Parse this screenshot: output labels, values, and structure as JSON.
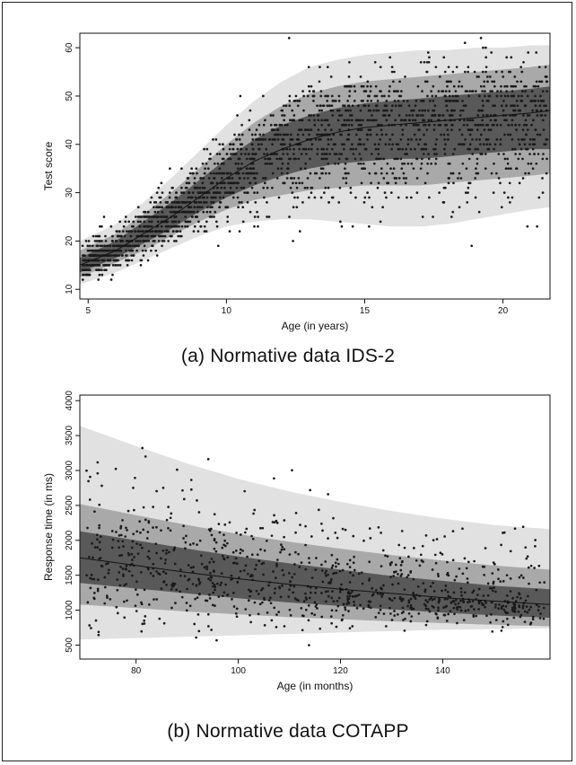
{
  "chart_data": [
    {
      "type": "scatter",
      "caption": "(a)  Normative data IDS-2",
      "xlabel": "Age (in years)",
      "ylabel": "Test score",
      "xlim": [
        4.7,
        21.7
      ],
      "ylim": [
        8,
        63
      ],
      "xticks": [
        5,
        10,
        15,
        20
      ],
      "yticks": [
        10,
        20,
        30,
        40,
        50,
        60
      ],
      "grid": false,
      "centile_bands": {
        "x": [
          4.7,
          6,
          7,
          8,
          9,
          10,
          11,
          12,
          13,
          14,
          15,
          16,
          17,
          18,
          19,
          20,
          21,
          21.7
        ],
        "median": [
          15,
          18,
          21.5,
          25,
          29,
          33,
          36.5,
          39,
          41,
          42.5,
          43.5,
          44,
          44.5,
          45,
          45.5,
          46,
          46.5,
          47
        ],
        "inner": {
          "lower": [
            13.5,
            16.5,
            19.5,
            22.5,
            26,
            29,
            31.5,
            33.5,
            35,
            36,
            36.5,
            37,
            37,
            37.5,
            38,
            38.5,
            39,
            39
          ],
          "upper": [
            16.5,
            20,
            24,
            28,
            32.5,
            37,
            41,
            44,
            46,
            47.5,
            48.5,
            49,
            49.5,
            50,
            50.5,
            51,
            51.5,
            52
          ]
        },
        "middle": {
          "lower": [
            12.5,
            15.5,
            18,
            21,
            24,
            26.5,
            28.5,
            29.5,
            30.5,
            31,
            31.5,
            31.5,
            31.5,
            32,
            32.5,
            33,
            33.5,
            34
          ],
          "upper": [
            18,
            21.5,
            25.5,
            30,
            35,
            40,
            44.5,
            48,
            50.5,
            52,
            53,
            53.5,
            54,
            54.5,
            55,
            55.5,
            56,
            56.5
          ]
        },
        "outer": {
          "lower": [
            11,
            13.5,
            16,
            18.5,
            21,
            23,
            24,
            24.5,
            24.5,
            24,
            23.5,
            23,
            23,
            23.5,
            24.5,
            25.5,
            26.5,
            27
          ],
          "upper": [
            20,
            23.5,
            28,
            33,
            38.5,
            44,
            49,
            53,
            56,
            57.5,
            58.5,
            59,
            59.5,
            59.5,
            60,
            60,
            60.5,
            60.5
          ]
        }
      },
      "points": {
        "n": 2200,
        "x_range": [
          4.8,
          21.6
        ]
      },
      "colors": {
        "outer": "#e1e1e1",
        "middle": "#a9a9a9",
        "inner": "#595959",
        "points": "#1a1a1a",
        "median": "#111111"
      }
    },
    {
      "type": "scatter",
      "caption": "(b)  Normative data COTAPP",
      "xlabel": "Age (in months)",
      "ylabel": "Response time (in ms)",
      "xlim": [
        69,
        161
      ],
      "ylim": [
        300,
        4080
      ],
      "xticks": [
        80,
        100,
        120,
        140
      ],
      "yticks": [
        500,
        1000,
        1500,
        2000,
        2500,
        3000,
        3500,
        4000
      ],
      "grid": false,
      "centile_bands": {
        "x": [
          69,
          80,
          90,
          100,
          110,
          120,
          130,
          140,
          150,
          161
        ],
        "median": [
          1750,
          1640,
          1540,
          1450,
          1370,
          1300,
          1240,
          1180,
          1130,
          1080
        ],
        "inner": {
          "lower": [
            1390,
            1310,
            1240,
            1170,
            1110,
            1060,
            1010,
            965,
            925,
            890
          ],
          "upper": [
            2130,
            2000,
            1880,
            1770,
            1670,
            1580,
            1490,
            1420,
            1350,
            1300
          ]
        },
        "middle": {
          "lower": [
            1080,
            1030,
            980,
            940,
            900,
            870,
            840,
            815,
            790,
            770
          ],
          "upper": [
            2520,
            2360,
            2220,
            2090,
            1980,
            1880,
            1790,
            1710,
            1640,
            1580
          ]
        },
        "outer": {
          "lower": [
            580,
            600,
            620,
            640,
            660,
            680,
            700,
            720,
            730,
            740
          ],
          "upper": [
            3640,
            3350,
            3100,
            2880,
            2700,
            2550,
            2420,
            2310,
            2220,
            2160
          ]
        }
      },
      "points": {
        "n": 950,
        "x_range": [
          70,
          160
        ]
      },
      "colors": {
        "outer": "#e1e1e1",
        "middle": "#a9a9a9",
        "inner": "#595959",
        "points": "#1a1a1a",
        "median": "#111111"
      }
    }
  ]
}
